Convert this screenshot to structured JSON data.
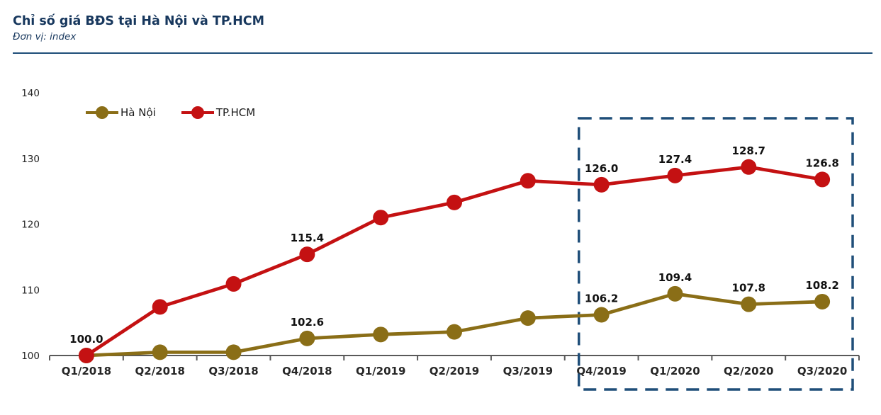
{
  "header": {
    "title": "Chỉ số giá BĐS tại Hà Nội và TP.HCM",
    "subtitle": "Đơn vị: index"
  },
  "colors": {
    "title_navy": "#17375D",
    "divider_navy": "#1F4E79",
    "highlight_box": "#1F4E79",
    "axis_gray": "#595959",
    "tick_label": "#262626",
    "data_label": "#111111"
  },
  "chart_data": {
    "type": "line",
    "title": "Chỉ số giá BĐS tại Hà Nội và TP.HCM",
    "unit_label": "Đơn vị: index",
    "categories": [
      "Q1/2018",
      "Q2/2018",
      "Q3/2018",
      "Q4/2018",
      "Q1/2019",
      "Q2/2019",
      "Q3/2019",
      "Q4/2019",
      "Q1/2020",
      "Q2/2020",
      "Q3/2020"
    ],
    "y_ticks": [
      "100",
      "110",
      "120",
      "130",
      "140"
    ],
    "ylim": [
      100,
      140
    ],
    "grid": "off",
    "legend_position": "top-left",
    "series": [
      {
        "name": "Hà Nội",
        "color": "#8A6E17",
        "values": [
          100.0,
          100.5,
          100.5,
          102.6,
          103.2,
          103.6,
          105.7,
          106.2,
          109.4,
          107.8,
          108.2
        ],
        "point_labels": [
          null,
          null,
          null,
          "102.6",
          null,
          null,
          null,
          "106.2",
          "109.4",
          "107.8",
          "108.2"
        ]
      },
      {
        "name": "TP.HCM",
        "color": "#C41112",
        "values": [
          100.0,
          107.4,
          110.9,
          115.4,
          121.0,
          123.3,
          126.6,
          126.0,
          127.4,
          128.7,
          126.8
        ],
        "point_labels": [
          "100.0",
          null,
          null,
          "115.4",
          null,
          null,
          null,
          "126.0",
          "127.4",
          "128.7",
          "126.8"
        ]
      }
    ],
    "highlight_range": {
      "from": "Q4/2019",
      "to": "Q3/2020"
    }
  }
}
